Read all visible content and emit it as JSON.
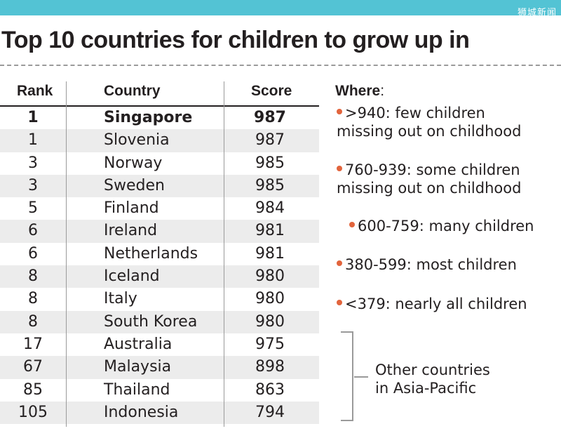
{
  "watermark": "狮城新闻",
  "title": "Top 10 countries for children to grow up in",
  "chart_data": {
    "type": "table",
    "columns": [
      "Rank",
      "Country",
      "Score"
    ],
    "rows": [
      {
        "rank": "1",
        "country": "Singapore",
        "score": 987,
        "highlight": true
      },
      {
        "rank": "1",
        "country": "Slovenia",
        "score": 987
      },
      {
        "rank": "3",
        "country": "Norway",
        "score": 985
      },
      {
        "rank": "3",
        "country": "Sweden",
        "score": 985
      },
      {
        "rank": "5",
        "country": "Finland",
        "score": 984
      },
      {
        "rank": "6",
        "country": "Ireland",
        "score": 981
      },
      {
        "rank": "6",
        "country": "Netherlands",
        "score": 981
      },
      {
        "rank": "8",
        "country": "Iceland",
        "score": 980
      },
      {
        "rank": "8",
        "country": "Italy",
        "score": 980
      },
      {
        "rank": "8",
        "country": "South Korea",
        "score": 980
      },
      {
        "rank": "17",
        "country": "Australia",
        "score": 975
      },
      {
        "rank": "67",
        "country": "Malaysia",
        "score": 898
      },
      {
        "rank": "85",
        "country": "Thailand",
        "score": 863
      },
      {
        "rank": "105",
        "country": "Indonesia",
        "score": 794
      }
    ]
  },
  "legend": {
    "title": "Where",
    "colon": ":",
    "dot_color": "#e2643c",
    "items": [
      ">940: few children\nmissing out on childhood",
      "760-939: some children\nmissing out on childhood",
      "600-759: many children",
      "380-599: most children",
      "<379: nearly all children"
    ]
  },
  "other_label": "Other countries\nin Asia-Pacific",
  "colors": {
    "topbar": "#53c3d4",
    "row_shade": "#ececec",
    "accent_dot": "#e2643c"
  }
}
